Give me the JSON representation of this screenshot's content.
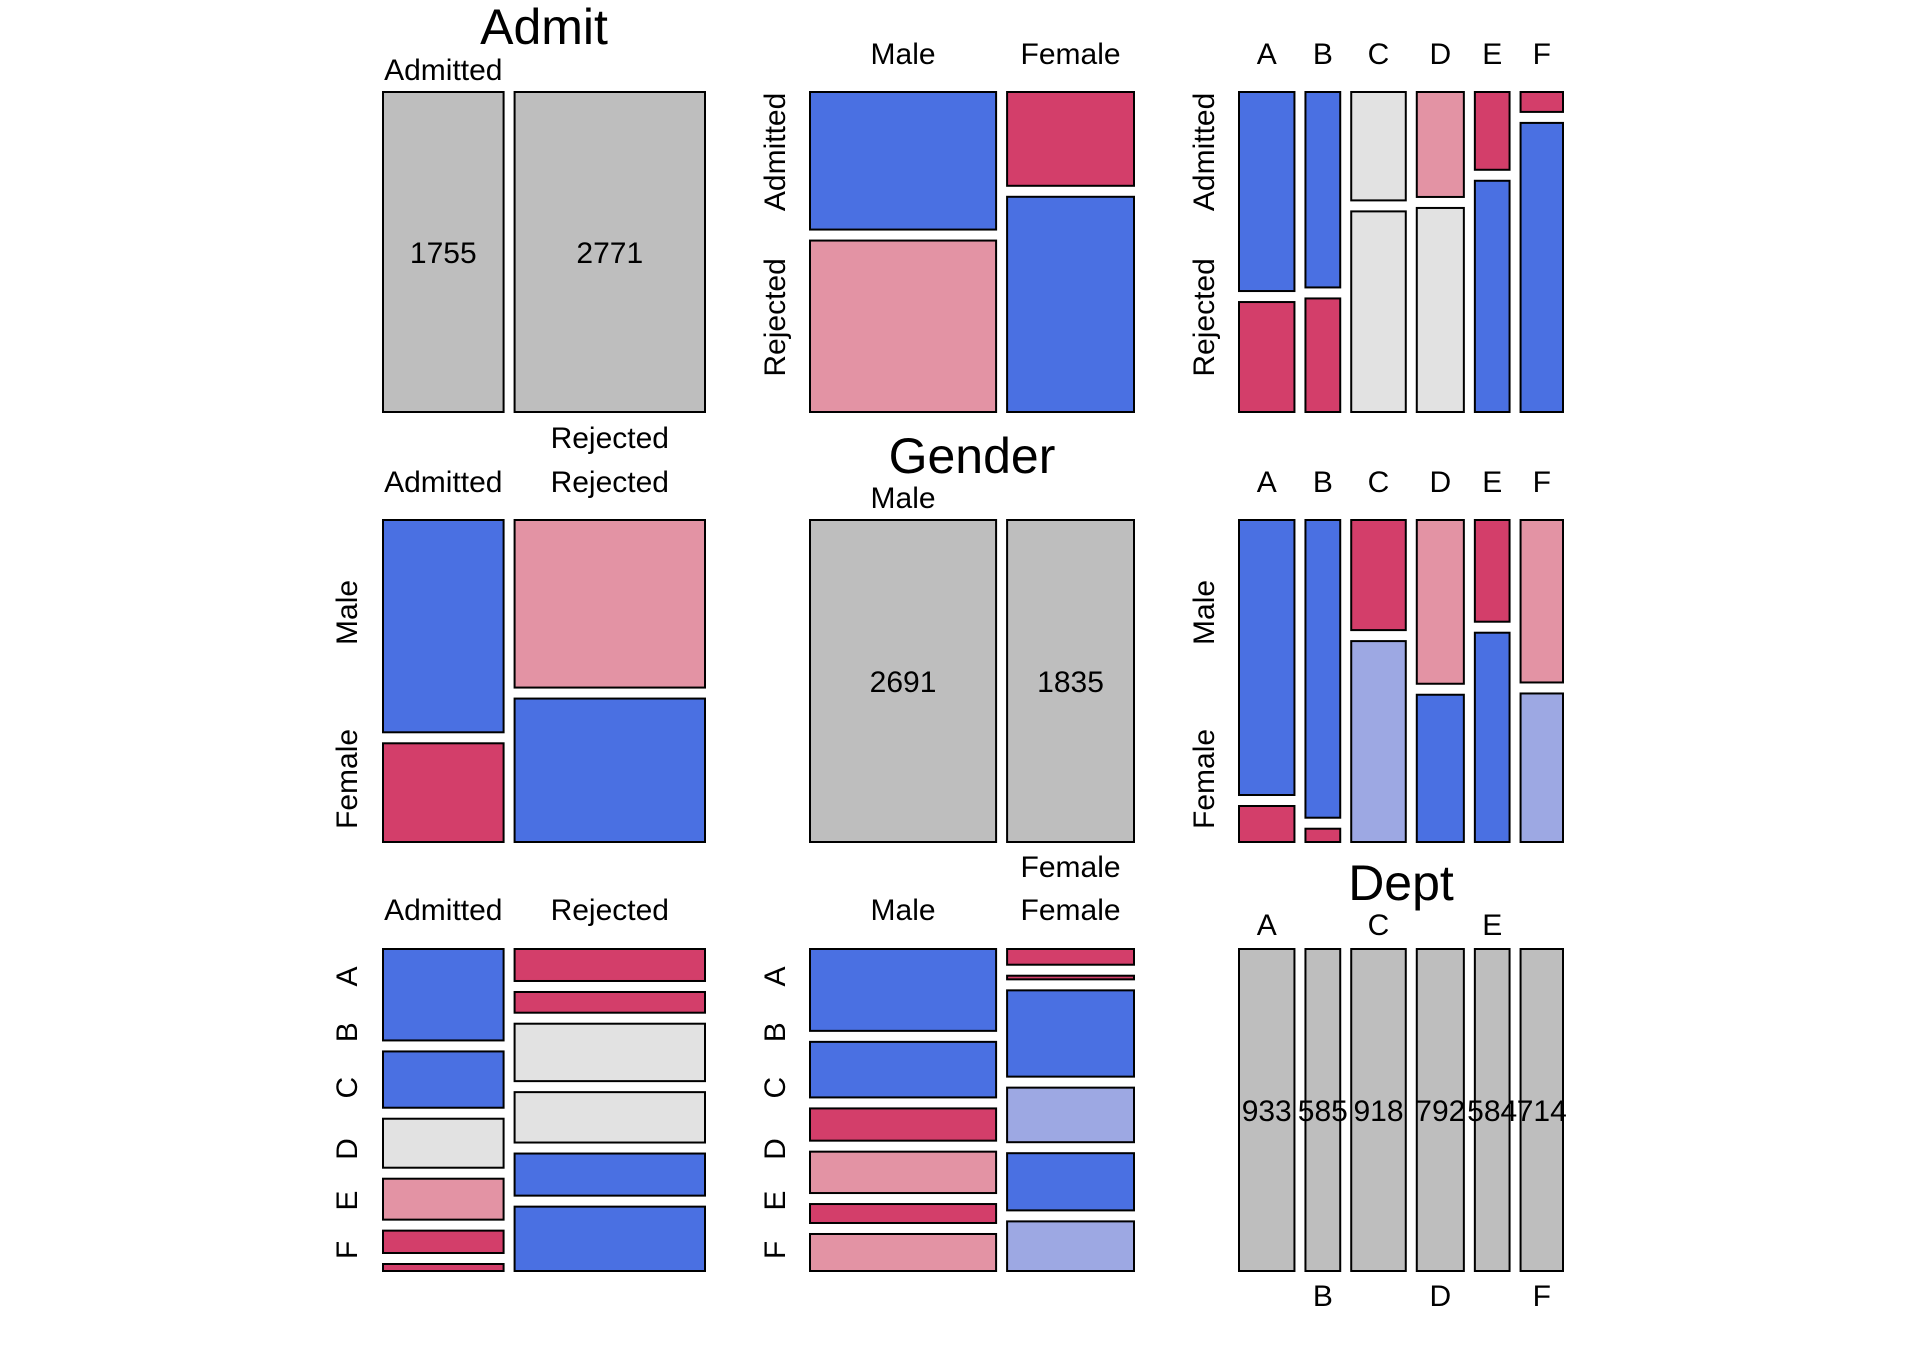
{
  "colors": {
    "diag": "#BEBEBE",
    "pos_strong": "#4A70E2",
    "pos_weak": "#9DA8E3",
    "neg_strong": "#D33E6A",
    "neg_weak": "#E393A4",
    "neutral": "#E2E2E2"
  },
  "chart_data": {
    "type": "mosaic-pairs",
    "variables": [
      {
        "name": "Admit",
        "levels": [
          "Admitted",
          "Rejected"
        ],
        "totals": [
          1755,
          2771
        ]
      },
      {
        "name": "Gender",
        "levels": [
          "Male",
          "Female"
        ],
        "totals": [
          2691,
          1835
        ]
      },
      {
        "name": "Dept",
        "levels": [
          "A",
          "B",
          "C",
          "D",
          "E",
          "F"
        ],
        "totals": [
          933,
          585,
          918,
          792,
          584,
          714
        ]
      }
    ],
    "count_labels": {
      "Admit": [
        "1755",
        "2771"
      ],
      "Gender": [
        "2691",
        "1835"
      ],
      "Dept": [
        "933",
        "585",
        "918",
        "792",
        "584",
        "714"
      ]
    },
    "tables": {
      "admit_gender": [
        [
          1198,
          557
        ],
        [
          1493,
          1278
        ]
      ],
      "admit_dept": [
        [
          601,
          370,
          322,
          269,
          147,
          46
        ],
        [
          332,
          215,
          596,
          523,
          437,
          668
        ]
      ],
      "gender_dept": [
        [
          825,
          560,
          325,
          417,
          191,
          373
        ],
        [
          108,
          25,
          593,
          375,
          393,
          341
        ]
      ]
    },
    "shades": {
      "admit_gender": [
        [
          "pos_strong",
          "neg_strong"
        ],
        [
          "neg_weak",
          "pos_strong"
        ]
      ],
      "gender_admit": [
        [
          "pos_strong",
          "neg_weak"
        ],
        [
          "neg_strong",
          "pos_strong"
        ]
      ],
      "admit_dept": [
        [
          "pos_strong",
          "pos_strong",
          "neutral",
          "neg_weak",
          "neg_strong",
          "neg_strong"
        ],
        [
          "neg_strong",
          "neg_strong",
          "neutral",
          "neutral",
          "pos_strong",
          "pos_strong"
        ]
      ],
      "dept_admit": [
        [
          "pos_strong",
          "neg_strong"
        ],
        [
          "pos_strong",
          "neg_strong"
        ],
        [
          "neutral",
          "neutral"
        ],
        [
          "neg_weak",
          "neutral"
        ],
        [
          "neg_strong",
          "pos_strong"
        ],
        [
          "neg_strong",
          "pos_strong"
        ]
      ],
      "gender_dept": [
        [
          "pos_strong",
          "pos_strong",
          "neg_strong",
          "neg_weak",
          "neg_strong",
          "neg_weak"
        ],
        [
          "neg_strong",
          "neg_strong",
          "pos_strong",
          "pos_weak",
          "pos_strong",
          "pos_weak"
        ]
      ],
      "dept_gender": [
        [
          "pos_strong",
          "neg_strong"
        ],
        [
          "pos_strong",
          "neg_strong"
        ],
        [
          "neg_strong",
          "pos_weak"
        ],
        [
          "neg_weak",
          "pos_strong"
        ],
        [
          "neg_strong",
          "pos_strong"
        ],
        [
          "neg_weak",
          "pos_weak"
        ]
      ]
    }
  }
}
